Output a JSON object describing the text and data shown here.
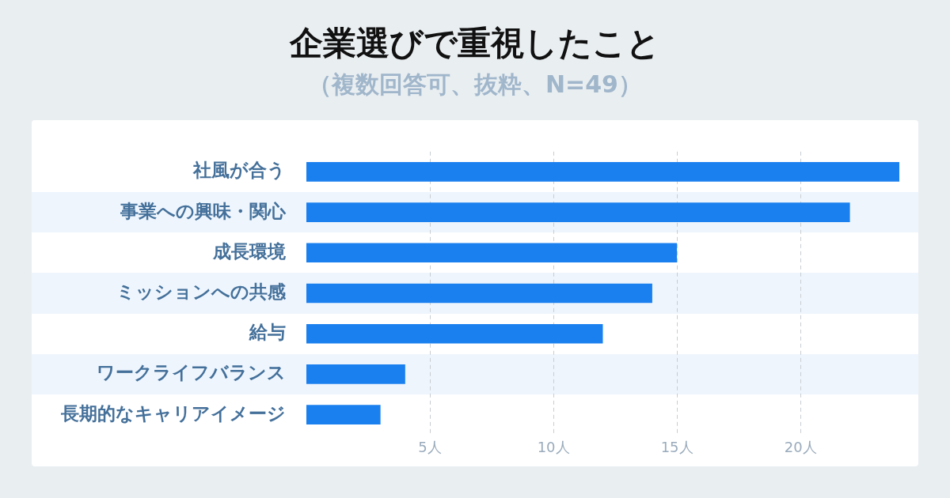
{
  "chart_data": {
    "type": "bar",
    "orientation": "horizontal",
    "title": "企業選びで重視したこと",
    "subtitle": "（複数回答可、抜粋、N=49）",
    "categories": [
      "社風が合う",
      "事業への興味・関心",
      "成長環境",
      "ミッションへの共感",
      "給与",
      "ワークライフバランス",
      "長期的なキャリアイメージ"
    ],
    "values": [
      24,
      22,
      15,
      14,
      12,
      4,
      3
    ],
    "color": "#1b80ef",
    "xlim": [
      0,
      24
    ],
    "xticks": [
      {
        "value": 5,
        "label": "5人"
      },
      {
        "value": 10,
        "label": "10人"
      },
      {
        "value": 15,
        "label": "15人"
      },
      {
        "value": 20,
        "label": "20人"
      }
    ],
    "grid": "x"
  }
}
